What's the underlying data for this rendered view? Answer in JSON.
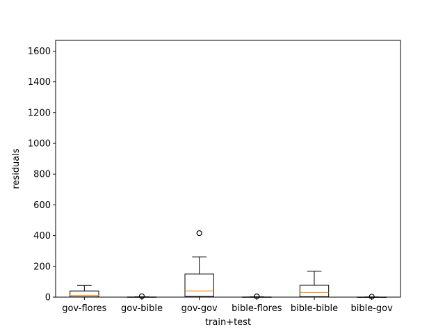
{
  "chart_data": {
    "type": "boxplot",
    "xlabel": "train+test",
    "ylabel": "residuals",
    "ylim": [
      0,
      1670
    ],
    "yticks": [
      0,
      200,
      400,
      600,
      800,
      1000,
      1200,
      1400,
      1600
    ],
    "categories": [
      "gov-flores",
      "gov-bible",
      "gov-gov",
      "bible-flores",
      "bible-bible",
      "bible-gov"
    ],
    "boxes": [
      {
        "label": "gov-flores",
        "whislo": 0,
        "q1": 2,
        "med": 12,
        "q3": 40,
        "whishi": 76,
        "fliers": []
      },
      {
        "label": "gov-bible",
        "whislo": 0,
        "q1": 0,
        "med": 0,
        "q3": 1,
        "whishi": 2,
        "fliers": [
          6
        ]
      },
      {
        "label": "gov-gov",
        "whislo": 0,
        "q1": 5,
        "med": 40,
        "q3": 150,
        "whishi": 262,
        "fliers": [
          416
        ]
      },
      {
        "label": "bible-flores",
        "whislo": 0,
        "q1": 0,
        "med": 0,
        "q3": 1,
        "whishi": 2,
        "fliers": [
          5
        ]
      },
      {
        "label": "bible-bible",
        "whislo": 0,
        "q1": 3,
        "med": 30,
        "q3": 77,
        "whishi": 168,
        "fliers": []
      },
      {
        "label": "bible-gov",
        "whislo": 0,
        "q1": 0,
        "med": 0,
        "q3": 0.5,
        "whishi": 1,
        "fliers": [
          3
        ]
      }
    ],
    "colors": {
      "box": "#000000",
      "median": "#ff7f0e",
      "background": "#ffffff"
    }
  }
}
